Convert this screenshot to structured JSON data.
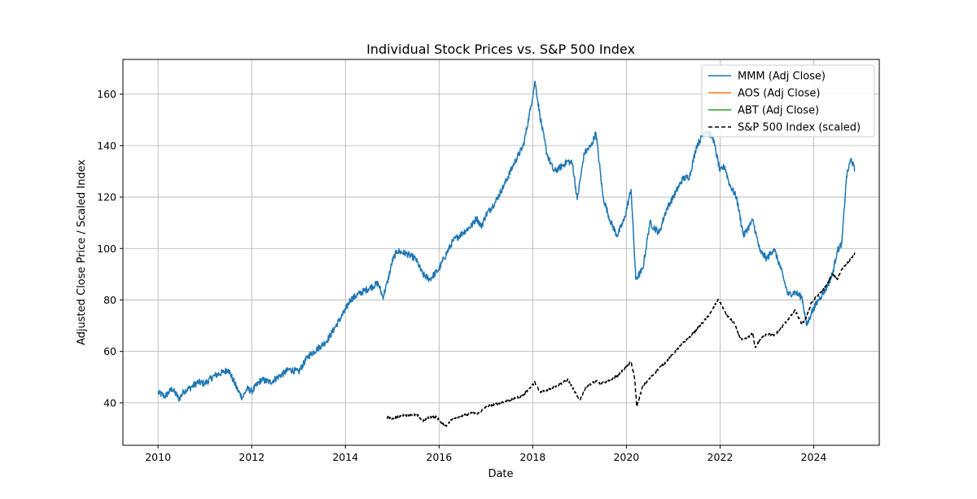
{
  "chart_data": {
    "type": "line",
    "title": "Individual Stock Prices vs. S&P 500 Index",
    "xlabel": "Date",
    "ylabel": "Adjusted Close Price / Scaled Index",
    "xlim": [
      2009.25,
      2025.4
    ],
    "ylim": [
      23.5,
      173.5
    ],
    "x_ticks": [
      2010,
      2012,
      2014,
      2016,
      2018,
      2020,
      2022,
      2024
    ],
    "x_tick_labels": [
      "2010",
      "2012",
      "2014",
      "2016",
      "2018",
      "2020",
      "2022",
      "2024"
    ],
    "y_ticks": [
      40,
      60,
      80,
      100,
      120,
      140,
      160
    ],
    "y_tick_labels": [
      "40",
      "60",
      "80",
      "100",
      "120",
      "140",
      "160"
    ],
    "grid": true,
    "legend_position": "top-right",
    "series": [
      {
        "name": "MMM (Adj Close)",
        "color": "#1f77b4",
        "style": "solid",
        "x": [
          2010.0,
          2010.15,
          2010.3,
          2010.45,
          2010.55,
          2010.7,
          2010.85,
          2011.0,
          2011.2,
          2011.4,
          2011.5,
          2011.6,
          2011.7,
          2011.8,
          2011.9,
          2012.0,
          2012.2,
          2012.4,
          2012.6,
          2012.8,
          2013.0,
          2013.2,
          2013.4,
          2013.6,
          2013.8,
          2014.0,
          2014.1,
          2014.3,
          2014.5,
          2014.7,
          2014.8,
          2014.9,
          2015.0,
          2015.1,
          2015.3,
          2015.5,
          2015.65,
          2015.8,
          2016.0,
          2016.1,
          2016.3,
          2016.5,
          2016.7,
          2016.8,
          2016.9,
          2017.0,
          2017.2,
          2017.4,
          2017.6,
          2017.8,
          2017.95,
          2018.05,
          2018.15,
          2018.3,
          2018.45,
          2018.55,
          2018.75,
          2018.85,
          2018.95,
          2019.1,
          2019.25,
          2019.35,
          2019.5,
          2019.65,
          2019.8,
          2019.95,
          2020.1,
          2020.2,
          2020.35,
          2020.5,
          2020.7,
          2020.85,
          2021.0,
          2021.2,
          2021.35,
          2021.5,
          2021.7,
          2021.85,
          2022.0,
          2022.1,
          2022.2,
          2022.35,
          2022.5,
          2022.7,
          2022.85,
          2023.0,
          2023.15,
          2023.3,
          2023.45,
          2023.6,
          2023.75,
          2023.85,
          2023.95,
          2024.1,
          2024.25,
          2024.4,
          2024.5,
          2024.6,
          2024.7,
          2024.8,
          2024.88
        ],
        "values": [
          44,
          42.5,
          45.5,
          41.5,
          44.5,
          46,
          48,
          47.5,
          50.5,
          52,
          53,
          49,
          45,
          42,
          45.5,
          44.5,
          49,
          48,
          50.5,
          53,
          52,
          58,
          61,
          64,
          70,
          76,
          80,
          82.5,
          84.5,
          86.5,
          81,
          87,
          95,
          99,
          98,
          96,
          90,
          88,
          92,
          96,
          103,
          106,
          109,
          112,
          108.5,
          113,
          118,
          125,
          133,
          140,
          154,
          165,
          152,
          137,
          130,
          131,
          134,
          133,
          119,
          137,
          140,
          145,
          120,
          111,
          105,
          111,
          123,
          88,
          92,
          110,
          106,
          115,
          120,
          127,
          128,
          140,
          146,
          143,
          130,
          132,
          125,
          120,
          105,
          111,
          99,
          96,
          100,
          92,
          82,
          83,
          81,
          70,
          75,
          80,
          84,
          90,
          99,
          102,
          128,
          135,
          130
        ]
      },
      {
        "name": "AOS (Adj Close)",
        "color": "#ff7f0e",
        "style": "solid",
        "x": [],
        "values": []
      },
      {
        "name": "ABT (Adj Close)",
        "color": "#2ca02c",
        "style": "solid",
        "x": [],
        "values": []
      },
      {
        "name": "S&P 500 Index (scaled)",
        "color": "#000000",
        "style": "dashed",
        "x": [
          2014.88,
          2015.0,
          2015.2,
          2015.4,
          2015.55,
          2015.65,
          2015.8,
          2015.95,
          2016.05,
          2016.15,
          2016.3,
          2016.5,
          2016.7,
          2016.85,
          2017.0,
          2017.2,
          2017.4,
          2017.6,
          2017.8,
          2018.0,
          2018.05,
          2018.15,
          2018.3,
          2018.5,
          2018.7,
          2018.75,
          2018.85,
          2018.95,
          2019.0,
          2019.15,
          2019.35,
          2019.45,
          2019.6,
          2019.8,
          2020.0,
          2020.1,
          2020.18,
          2020.22,
          2020.35,
          2020.55,
          2020.7,
          2020.85,
          2021.0,
          2021.2,
          2021.4,
          2021.6,
          2021.8,
          2021.95,
          2022.0,
          2022.15,
          2022.3,
          2022.45,
          2022.55,
          2022.7,
          2022.75,
          2022.85,
          2023.0,
          2023.15,
          2023.3,
          2023.5,
          2023.6,
          2023.75,
          2023.85,
          2023.95,
          2024.1,
          2024.25,
          2024.4,
          2024.5,
          2024.6,
          2024.75,
          2024.88
        ],
        "values": [
          34.5,
          34,
          35,
          35.5,
          35,
          33,
          34.5,
          34.5,
          32,
          31,
          34,
          35,
          36,
          36,
          38.5,
          39.5,
          40.5,
          41.5,
          43,
          47,
          48,
          44,
          45,
          46.5,
          48.5,
          49,
          46,
          42.5,
          41,
          46.5,
          48.5,
          47.5,
          48.5,
          50.5,
          54,
          56,
          49,
          38.5,
          46.5,
          50.5,
          53.5,
          56,
          59,
          63,
          66.5,
          70.5,
          75,
          80,
          79,
          74,
          71,
          64.5,
          65,
          67,
          61.5,
          64.5,
          67,
          66,
          69,
          73.5,
          76,
          70.5,
          73.5,
          79,
          82,
          85,
          90,
          88,
          92,
          95,
          98
        ]
      }
    ]
  }
}
